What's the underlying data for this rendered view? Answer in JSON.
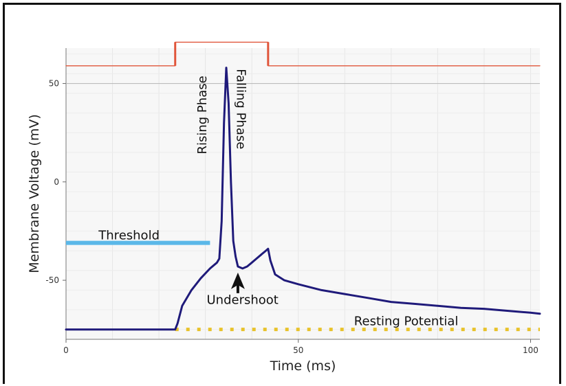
{
  "chart_data": {
    "type": "line",
    "xlabel": "Time (ms)",
    "ylabel": "Membrane Voltage (mV)",
    "xlim": [
      0,
      102
    ],
    "ylim": [
      -80,
      68
    ],
    "x_ticks": [
      0,
      50,
      100
    ],
    "y_ticks": [
      50,
      0,
      -50
    ],
    "x_tick_labels": [
      "0",
      "50",
      "100"
    ],
    "y_tick_labels": [
      "50",
      "0",
      "-50"
    ],
    "grid": true,
    "series": [
      {
        "kind": "membrane-voltage",
        "color": "#1f1a7a",
        "x": [
          0,
          23.5,
          24,
          25,
          27,
          29,
          31,
          32.5,
          33,
          33.5,
          34,
          34.5,
          35,
          35.5,
          36,
          36.5,
          37,
          38,
          39,
          40,
          41,
          42,
          43,
          43.5,
          44,
          45,
          47,
          50,
          55,
          60,
          65,
          70,
          75,
          80,
          85,
          90,
          95,
          100,
          102
        ],
        "y": [
          -75,
          -75,
          -72,
          -63,
          -55,
          -49,
          -44,
          -41,
          -39,
          -20,
          30,
          58,
          40,
          0,
          -30,
          -38,
          -43,
          -44,
          -43,
          -41,
          -39,
          -37,
          -35,
          -34,
          -40,
          -47,
          -50,
          -52,
          -55,
          -57,
          -59,
          -61,
          -62,
          -63,
          -64,
          -64.5,
          -65.5,
          -66.5,
          -67
        ]
      },
      {
        "kind": "stimulus",
        "color": "#e0553a",
        "x": [
          0,
          23.5,
          23.5,
          43.5,
          43.5,
          102
        ],
        "y": [
          59,
          59,
          71,
          71,
          59,
          59
        ]
      }
    ],
    "threshold": {
      "label": "Threshold",
      "y": -31,
      "x_range": [
        0,
        31
      ],
      "color": "#5bb8e8"
    },
    "resting_potential": {
      "label": "Resting Potential",
      "y": -75,
      "x_range": [
        23.5,
        102
      ],
      "color": "#e8c22a"
    },
    "reference_line": {
      "y": 50,
      "color": "#bbbbbb"
    },
    "annotations": [
      {
        "text": "Rising Phase",
        "x": 30.2,
        "y": 34,
        "rotation": -90
      },
      {
        "text": "Falling Phase",
        "x": 36.8,
        "y": 37,
        "rotation": 90
      },
      {
        "text": "Undershoot",
        "x": 38,
        "y": -62,
        "rotation": 0,
        "arrow_to": [
          37,
          -44
        ]
      }
    ]
  }
}
